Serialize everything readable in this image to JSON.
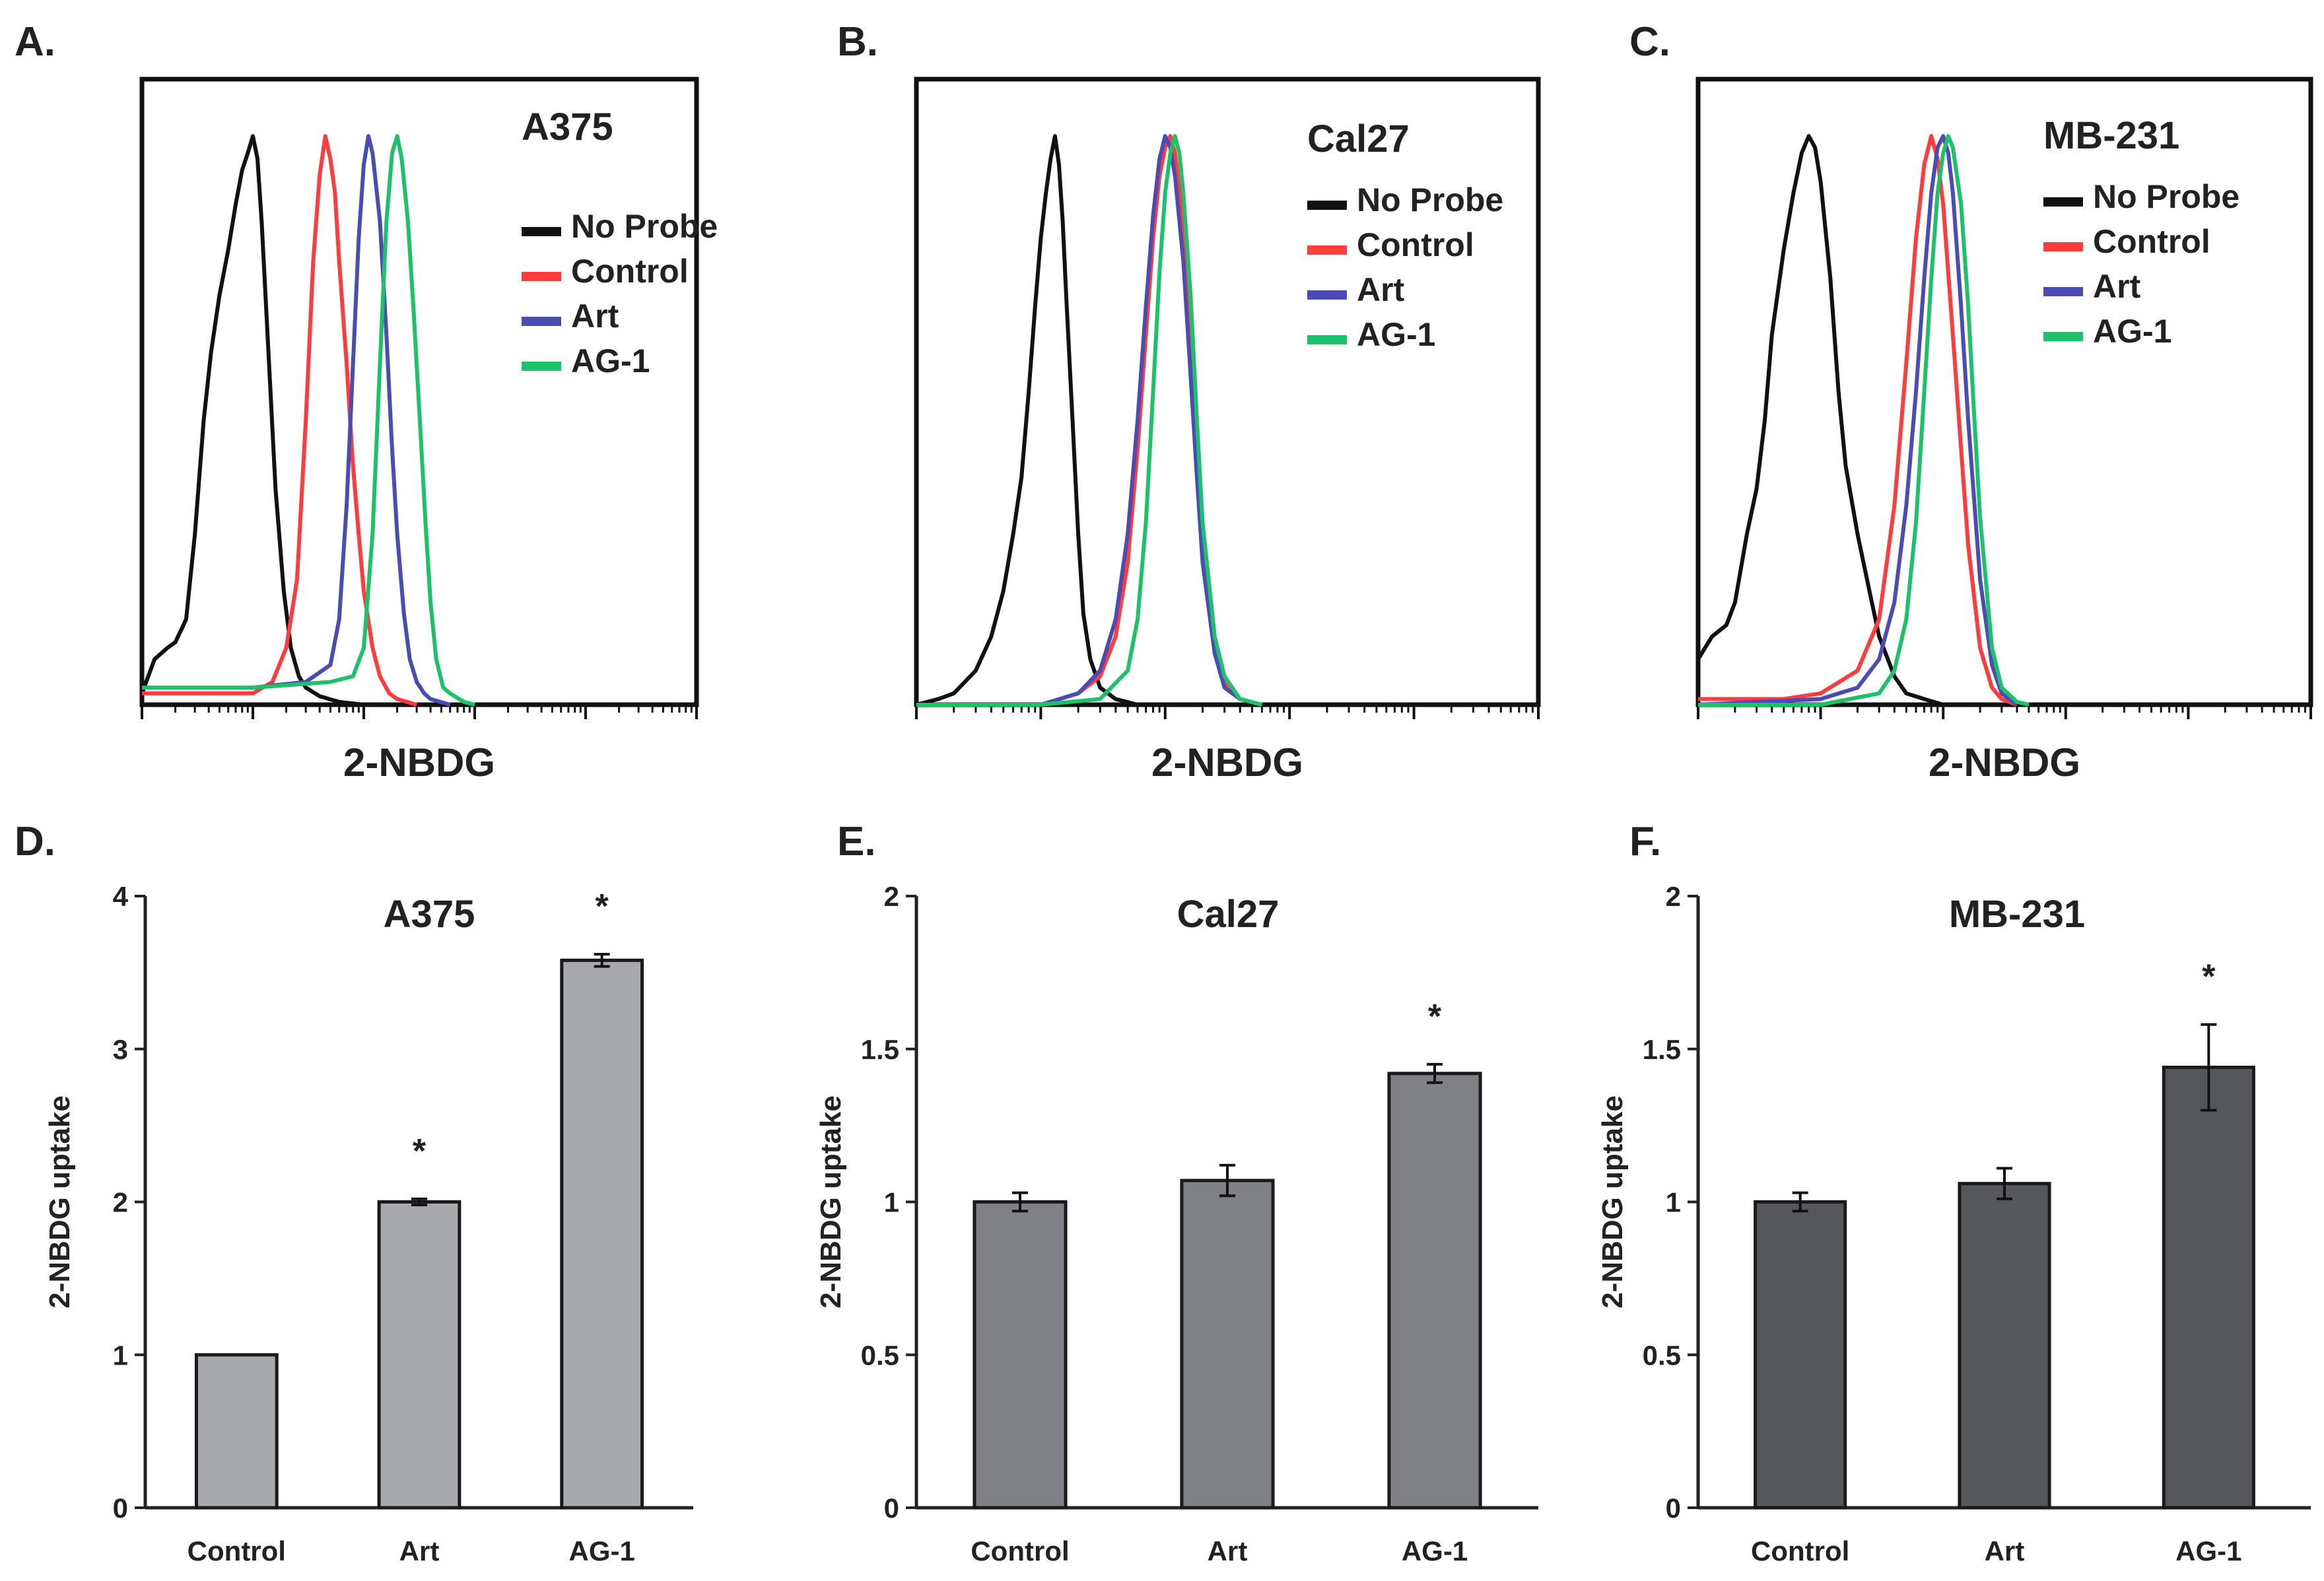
{
  "colors": {
    "no_probe": "#111111",
    "control": "#ff3b3b",
    "art": "#4b4bb5",
    "ag1": "#1cc26a",
    "bar_A375": "#a8a9ad",
    "bar_Cal27": "#808185",
    "bar_MB231": "#55575a"
  },
  "chart_data": [
    {
      "id": "A",
      "letter": "A.",
      "type": "line",
      "title": "A375",
      "xlabel": "2-NBDG",
      "xscale": "log",
      "xlim": [
        1,
        100000
      ],
      "ylim": [
        0,
        1.1
      ],
      "legend_position": "top-right",
      "series": [
        {
          "name": "No Probe",
          "color_key": "no_probe",
          "x": [
            1,
            1.3,
            1.7,
            2,
            2.5,
            3,
            3.6,
            4.2,
            5,
            6,
            7,
            8,
            9,
            10,
            11,
            12,
            14,
            16,
            19,
            22,
            26,
            30,
            40,
            60,
            100
          ],
          "y": [
            0.02,
            0.08,
            0.1,
            0.11,
            0.15,
            0.3,
            0.5,
            0.62,
            0.72,
            0.8,
            0.88,
            0.94,
            0.97,
            1.0,
            0.96,
            0.85,
            0.6,
            0.38,
            0.2,
            0.1,
            0.05,
            0.03,
            0.015,
            0.005,
            0.0
          ]
        },
        {
          "name": "Control",
          "color_key": "control",
          "x": [
            1,
            5,
            10,
            15,
            20,
            25,
            30,
            35,
            40,
            45,
            50,
            55,
            60,
            70,
            80,
            90,
            100,
            120,
            140,
            170,
            200,
            300
          ],
          "y": [
            0.02,
            0.02,
            0.02,
            0.04,
            0.1,
            0.22,
            0.5,
            0.78,
            0.93,
            1.0,
            0.96,
            0.9,
            0.78,
            0.6,
            0.42,
            0.3,
            0.2,
            0.1,
            0.05,
            0.02,
            0.01,
            0.0
          ]
        },
        {
          "name": "Art",
          "color_key": "art",
          "x": [
            1,
            10,
            30,
            50,
            60,
            70,
            80,
            90,
            100,
            110,
            120,
            140,
            160,
            180,
            200,
            230,
            260,
            300,
            350,
            400,
            600
          ],
          "y": [
            0.03,
            0.03,
            0.04,
            0.07,
            0.15,
            0.35,
            0.6,
            0.82,
            0.95,
            1.0,
            0.97,
            0.85,
            0.65,
            0.45,
            0.3,
            0.16,
            0.08,
            0.04,
            0.02,
            0.01,
            0.0
          ]
        },
        {
          "name": "AG-1",
          "color_key": "ag1",
          "x": [
            1,
            10,
            50,
            80,
            100,
            120,
            140,
            160,
            180,
            200,
            220,
            250,
            280,
            320,
            360,
            400,
            450,
            520,
            600,
            800,
            1000
          ],
          "y": [
            0.03,
            0.03,
            0.04,
            0.05,
            0.1,
            0.3,
            0.6,
            0.85,
            0.97,
            1.0,
            0.96,
            0.85,
            0.7,
            0.5,
            0.32,
            0.18,
            0.08,
            0.03,
            0.02,
            0.005,
            0.0
          ]
        }
      ]
    },
    {
      "id": "B",
      "letter": "B.",
      "type": "line",
      "title": "Cal27",
      "xlabel": "2-NBDG",
      "xscale": "log",
      "xlim": [
        1,
        100000
      ],
      "ylim": [
        0,
        1.1
      ],
      "legend_position": "top-right",
      "series": [
        {
          "name": "No Probe",
          "color_key": "no_probe",
          "x": [
            1,
            1.5,
            2,
            3,
            4,
            5,
            6,
            7,
            8,
            9,
            10,
            11,
            12,
            13,
            14,
            15,
            16,
            18,
            20,
            22,
            25,
            30,
            40,
            60
          ],
          "y": [
            0.0,
            0.01,
            0.02,
            0.06,
            0.12,
            0.2,
            0.3,
            0.4,
            0.55,
            0.7,
            0.82,
            0.9,
            0.96,
            1.0,
            0.95,
            0.85,
            0.72,
            0.5,
            0.3,
            0.16,
            0.08,
            0.03,
            0.01,
            0.0
          ]
        },
        {
          "name": "Control",
          "color_key": "control",
          "x": [
            1,
            10,
            20,
            30,
            40,
            50,
            60,
            70,
            80,
            90,
            100,
            110,
            120,
            140,
            160,
            180,
            200,
            250,
            300,
            400,
            600
          ],
          "y": [
            0.0,
            0.0,
            0.02,
            0.05,
            0.12,
            0.25,
            0.45,
            0.65,
            0.82,
            0.93,
            0.98,
            1.0,
            0.97,
            0.85,
            0.65,
            0.45,
            0.28,
            0.1,
            0.04,
            0.01,
            0.0
          ]
        },
        {
          "name": "Art",
          "color_key": "art",
          "x": [
            1,
            10,
            20,
            30,
            40,
            50,
            60,
            70,
            80,
            90,
            100,
            110,
            120,
            140,
            160,
            180,
            200,
            250,
            300,
            400,
            600
          ],
          "y": [
            0.0,
            0.0,
            0.02,
            0.06,
            0.15,
            0.3,
            0.5,
            0.7,
            0.86,
            0.96,
            1.0,
            0.98,
            0.93,
            0.78,
            0.58,
            0.4,
            0.25,
            0.09,
            0.03,
            0.01,
            0.0
          ]
        },
        {
          "name": "AG-1",
          "color_key": "ag1",
          "x": [
            1,
            10,
            30,
            50,
            60,
            70,
            80,
            90,
            100,
            110,
            120,
            130,
            140,
            160,
            180,
            200,
            250,
            300,
            400,
            600
          ],
          "y": [
            0.0,
            0.0,
            0.01,
            0.06,
            0.15,
            0.32,
            0.55,
            0.76,
            0.9,
            0.97,
            1.0,
            0.97,
            0.9,
            0.72,
            0.5,
            0.32,
            0.12,
            0.05,
            0.01,
            0.0
          ]
        }
      ]
    },
    {
      "id": "C",
      "letter": "C.",
      "type": "line",
      "title": "MB-231",
      "xlabel": "2-NBDG",
      "xscale": "log",
      "xlim": [
        1,
        100000
      ],
      "ylim": [
        0,
        1.1
      ],
      "legend_position": "top-right",
      "series": [
        {
          "name": "No Probe",
          "color_key": "no_probe",
          "x": [
            1,
            1.3,
            1.7,
            2,
            2.5,
            3,
            3.5,
            4,
            5,
            6,
            7,
            8,
            9,
            10,
            12,
            14,
            16,
            20,
            25,
            30,
            40,
            50,
            70,
            100
          ],
          "y": [
            0.08,
            0.12,
            0.14,
            0.18,
            0.3,
            0.38,
            0.5,
            0.65,
            0.8,
            0.9,
            0.97,
            1.0,
            0.98,
            0.92,
            0.75,
            0.55,
            0.42,
            0.3,
            0.2,
            0.12,
            0.05,
            0.02,
            0.01,
            0.0
          ]
        },
        {
          "name": "Control",
          "color_key": "control",
          "x": [
            1,
            5,
            10,
            20,
            30,
            40,
            50,
            60,
            70,
            80,
            90,
            100,
            120,
            140,
            160,
            200,
            250,
            300,
            400
          ],
          "y": [
            0.01,
            0.01,
            0.02,
            0.06,
            0.15,
            0.35,
            0.6,
            0.82,
            0.95,
            1.0,
            0.96,
            0.88,
            0.65,
            0.45,
            0.28,
            0.1,
            0.03,
            0.01,
            0.0
          ]
        },
        {
          "name": "Art",
          "color_key": "art",
          "x": [
            1,
            10,
            20,
            30,
            40,
            50,
            60,
            70,
            80,
            90,
            100,
            110,
            120,
            140,
            160,
            200,
            250,
            300,
            400
          ],
          "y": [
            0.0,
            0.01,
            0.03,
            0.08,
            0.18,
            0.35,
            0.55,
            0.75,
            0.9,
            0.98,
            1.0,
            0.97,
            0.9,
            0.7,
            0.5,
            0.22,
            0.07,
            0.02,
            0.0
          ]
        },
        {
          "name": "AG-1",
          "color_key": "ag1",
          "x": [
            1,
            10,
            30,
            40,
            50,
            60,
            70,
            80,
            90,
            100,
            110,
            120,
            140,
            160,
            180,
            200,
            250,
            300,
            400,
            500
          ],
          "y": [
            0.0,
            0.0,
            0.02,
            0.06,
            0.15,
            0.32,
            0.55,
            0.75,
            0.9,
            0.97,
            1.0,
            0.98,
            0.88,
            0.7,
            0.5,
            0.33,
            0.1,
            0.03,
            0.005,
            0.0
          ]
        }
      ]
    },
    {
      "id": "D",
      "letter": "D.",
      "type": "bar",
      "title": "A375",
      "ylabel": "2-NBDG uptake",
      "categories": [
        "Control",
        "Art",
        "AG-1"
      ],
      "values": [
        1.0,
        2.0,
        3.58
      ],
      "errors": [
        0,
        0.02,
        0.04
      ],
      "significance": [
        "",
        "*",
        "*"
      ],
      "ylim": [
        0,
        4
      ],
      "yticks": [
        0,
        1,
        2,
        3,
        4
      ],
      "ytick_labels": [
        "0",
        "1",
        "2",
        "3",
        "4"
      ],
      "bar_color_key": "bar_A375"
    },
    {
      "id": "E",
      "letter": "E.",
      "type": "bar",
      "title": "Cal27",
      "ylabel": "2-NBDG uptake",
      "categories": [
        "Control",
        "Art",
        "AG-1"
      ],
      "values": [
        1.0,
        1.07,
        1.42
      ],
      "errors": [
        0.03,
        0.05,
        0.03
      ],
      "significance": [
        "",
        "",
        "*"
      ],
      "ylim": [
        0,
        2
      ],
      "yticks": [
        0,
        0.5,
        1,
        1.5,
        2
      ],
      "ytick_labels": [
        "0",
        "0.5",
        "1",
        "1.5",
        "2"
      ],
      "bar_color_key": "bar_Cal27"
    },
    {
      "id": "F",
      "letter": "F.",
      "type": "bar",
      "title": "MB-231",
      "ylabel": "2-NBDG uptake",
      "categories": [
        "Control",
        "Art",
        "AG-1"
      ],
      "values": [
        1.0,
        1.06,
        1.44
      ],
      "errors": [
        0.03,
        0.05,
        0.14
      ],
      "significance": [
        "",
        "",
        "*"
      ],
      "ylim": [
        0,
        2
      ],
      "yticks": [
        0,
        0.5,
        1,
        1.5,
        2
      ],
      "ytick_labels": [
        "0",
        "0.5",
        "1",
        "1.5",
        "2"
      ],
      "bar_color_key": "bar_MB231"
    }
  ]
}
